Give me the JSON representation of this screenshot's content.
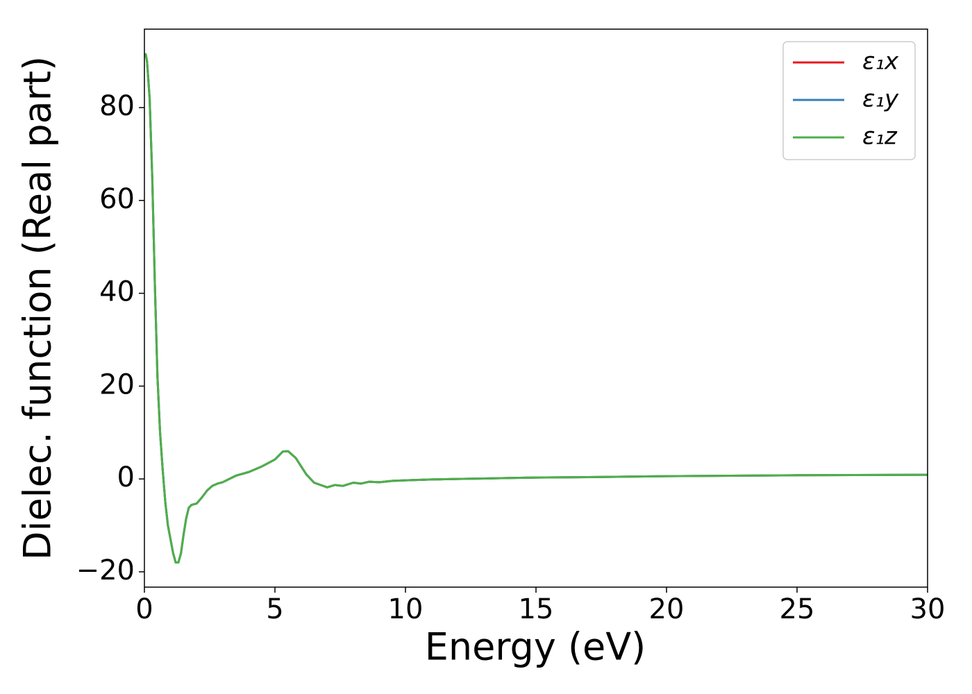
{
  "chart_data": {
    "type": "line",
    "xlabel": "Energy (eV)",
    "ylabel": "Dielec. function (Real part)",
    "xlim": [
      0,
      30
    ],
    "ylim": [
      -23.3,
      96.9
    ],
    "xticks": [
      0,
      5,
      10,
      15,
      20,
      25,
      30
    ],
    "yticks": [
      {
        "value": -20,
        "label": "−20"
      },
      0,
      20,
      40,
      60,
      80
    ],
    "legend": "upper right",
    "x": [
      0,
      0.05,
      0.1,
      0.2,
      0.3,
      0.4,
      0.5,
      0.6,
      0.7,
      0.8,
      0.9,
      1.0,
      1.1,
      1.2,
      1.3,
      1.4,
      1.5,
      1.6,
      1.7,
      1.8,
      2.0,
      2.2,
      2.4,
      2.6,
      2.8,
      3.0,
      3.5,
      4.0,
      4.5,
      5.0,
      5.3,
      5.5,
      5.8,
      6.2,
      6.5,
      6.8,
      7.0,
      7.3,
      7.6,
      8.0,
      8.3,
      8.6,
      9.0,
      9.5,
      10,
      11,
      12,
      13,
      14,
      15,
      17,
      20,
      25,
      30
    ],
    "series": [
      {
        "name": "ε₁x",
        "color": "#e41a1c",
        "values": [
          91,
          91.5,
          90,
          82,
          65,
          42,
          22,
          10,
          2,
          -5,
          -10,
          -13,
          -16,
          -18,
          -18,
          -16,
          -12,
          -8.5,
          -6.2,
          -5.6,
          -5.3,
          -4,
          -2.5,
          -1.5,
          -1,
          -0.7,
          0.7,
          1.5,
          2.7,
          4.2,
          5.9,
          6,
          4.5,
          1,
          -0.8,
          -1.4,
          -1.8,
          -1.3,
          -1.5,
          -0.8,
          -1,
          -0.6,
          -0.7,
          -0.4,
          -0.3,
          -0.1,
          0,
          0.1,
          0.2,
          0.3,
          0.4,
          0.6,
          0.8,
          0.9
        ]
      },
      {
        "name": "ε₁y",
        "color": "#377eb8",
        "values": [
          91,
          91.5,
          90,
          82,
          65,
          42,
          22,
          10,
          2,
          -5,
          -10,
          -13,
          -16,
          -18,
          -18,
          -16,
          -12,
          -8.5,
          -6.2,
          -5.6,
          -5.3,
          -4,
          -2.5,
          -1.5,
          -1,
          -0.7,
          0.7,
          1.5,
          2.7,
          4.2,
          5.9,
          6,
          4.5,
          1,
          -0.8,
          -1.4,
          -1.8,
          -1.3,
          -1.5,
          -0.8,
          -1,
          -0.6,
          -0.7,
          -0.4,
          -0.3,
          -0.1,
          0,
          0.1,
          0.2,
          0.3,
          0.4,
          0.6,
          0.8,
          0.9
        ]
      },
      {
        "name": "ε₁z",
        "color": "#4daf4a",
        "values": [
          91,
          91.5,
          90,
          82,
          65,
          42,
          22,
          10,
          2,
          -5,
          -10,
          -13,
          -16,
          -18,
          -18,
          -16,
          -12,
          -8.5,
          -6.2,
          -5.6,
          -5.3,
          -4,
          -2.5,
          -1.5,
          -1,
          -0.7,
          0.7,
          1.5,
          2.7,
          4.2,
          5.9,
          6,
          4.5,
          1,
          -0.8,
          -1.4,
          -1.8,
          -1.3,
          -1.5,
          -0.8,
          -1,
          -0.6,
          -0.7,
          -0.4,
          -0.3,
          -0.1,
          0,
          0.1,
          0.2,
          0.3,
          0.4,
          0.6,
          0.8,
          0.9
        ]
      }
    ]
  }
}
